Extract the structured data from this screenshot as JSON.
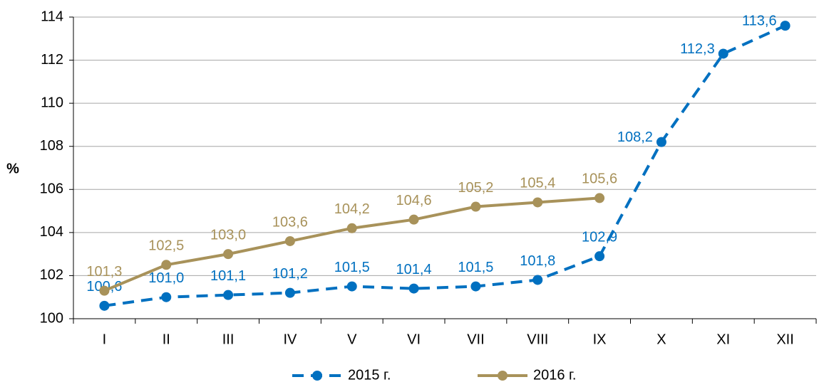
{
  "chart_data": {
    "type": "line",
    "y_label": "%",
    "categories": [
      "I",
      "II",
      "III",
      "IV",
      "V",
      "VI",
      "VII",
      "VIII",
      "IX",
      "X",
      "XI",
      "XII"
    ],
    "series": [
      {
        "name": "2015 г.",
        "color": "#0070c0",
        "dashed": true,
        "values": [
          100.6,
          101.0,
          101.1,
          101.2,
          101.5,
          101.4,
          101.5,
          101.8,
          102.9,
          108.2,
          112.3,
          113.6
        ],
        "value_labels": [
          "100,6",
          "101,0",
          "101,1",
          "101,2",
          "101,5",
          "101,4",
          "101,5",
          "101,8",
          "102,9",
          "108,2",
          "112,3",
          "113,6"
        ]
      },
      {
        "name": "2016 г.",
        "color": "#a8925a",
        "dashed": false,
        "values": [
          101.3,
          102.5,
          103.0,
          103.6,
          104.2,
          104.6,
          105.2,
          105.4,
          105.6,
          null,
          null,
          null
        ],
        "value_labels": [
          "101,3",
          "102,5",
          "103,0",
          "103,6",
          "104,2",
          "104,6",
          "105,2",
          "105,4",
          "105,6",
          null,
          null,
          null
        ]
      }
    ],
    "ylim": [
      100,
      114
    ],
    "yticks": [
      100,
      102,
      104,
      106,
      108,
      110,
      112,
      114
    ],
    "grid": true
  }
}
